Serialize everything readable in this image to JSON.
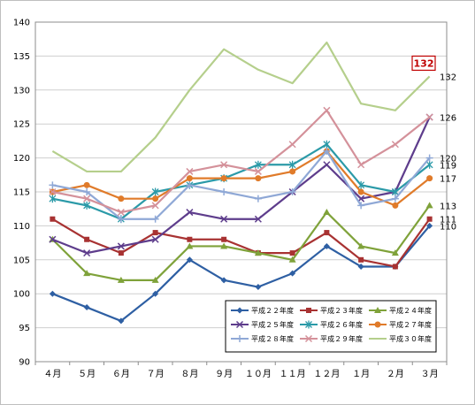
{
  "chart_data": {
    "type": "line",
    "categories": [
      "４月",
      "５月",
      "６月",
      "７月",
      "８月",
      "９月",
      "１０月",
      "１１月",
      "１２月",
      "１月",
      "２月",
      "３月"
    ],
    "ylim": [
      90,
      140
    ],
    "yticks": [
      90,
      95,
      100,
      105,
      110,
      115,
      120,
      125,
      130,
      135,
      140
    ],
    "grid": "horizontal",
    "legend_position": "bottom-right",
    "series": [
      {
        "name": "平成２２年度",
        "color": "#2e5fa3",
        "marker": "diamond",
        "values": [
          100,
          98,
          96,
          100,
          105,
          102,
          101,
          103,
          107,
          104,
          104,
          110
        ]
      },
      {
        "name": "平成２３年度",
        "color": "#a83232",
        "marker": "square",
        "values": [
          111,
          108,
          106,
          109,
          108,
          108,
          106,
          106,
          109,
          105,
          104,
          111
        ]
      },
      {
        "name": "平成２４年度",
        "color": "#7fa23a",
        "marker": "triangle",
        "values": [
          108,
          103,
          102,
          102,
          107,
          107,
          106,
          105,
          112,
          107,
          106,
          113
        ]
      },
      {
        "name": "平成２５年度",
        "color": "#5e3d8c",
        "marker": "x",
        "values": [
          108,
          106,
          107,
          108,
          112,
          111,
          111,
          115,
          119,
          114,
          115,
          126
        ]
      },
      {
        "name": "平成２６年度",
        "color": "#2b9aa8",
        "marker": "star",
        "values": [
          114,
          113,
          111,
          115,
          116,
          117,
          119,
          119,
          122,
          116,
          115,
          119
        ]
      },
      {
        "name": "平成２７年度",
        "color": "#e07b2a",
        "marker": "circle",
        "values": [
          115,
          116,
          114,
          114,
          117,
          117,
          117,
          118,
          121,
          115,
          113,
          117
        ]
      },
      {
        "name": "平成２８年度",
        "color": "#8fa8d6",
        "marker": "plus",
        "values": [
          116,
          115,
          111,
          111,
          116,
          115,
          114,
          115,
          121,
          113,
          114,
          120
        ]
      },
      {
        "name": "平成２９年度",
        "color": "#d4919a",
        "marker": "x",
        "values": [
          115,
          114,
          112,
          113,
          118,
          119,
          118,
          122,
          127,
          119,
          122,
          126
        ]
      },
      {
        "name": "平成３０年度",
        "color": "#b5cf8c",
        "marker": "none",
        "values": [
          121,
          118,
          118,
          123,
          130,
          136,
          133,
          131,
          137,
          128,
          127,
          132
        ]
      }
    ],
    "end_labels": [
      {
        "text": "132",
        "value": 132
      },
      {
        "text": "126",
        "value": 126
      },
      {
        "text": "120",
        "value": 120
      },
      {
        "text": "119",
        "value": 119
      },
      {
        "text": "117",
        "value": 117
      },
      {
        "text": "113",
        "value": 113
      },
      {
        "text": "111",
        "value": 111
      },
      {
        "text": "110",
        "value": 110
      }
    ],
    "callout": {
      "text": "132",
      "value": 132,
      "border_color": "#c00000"
    }
  }
}
